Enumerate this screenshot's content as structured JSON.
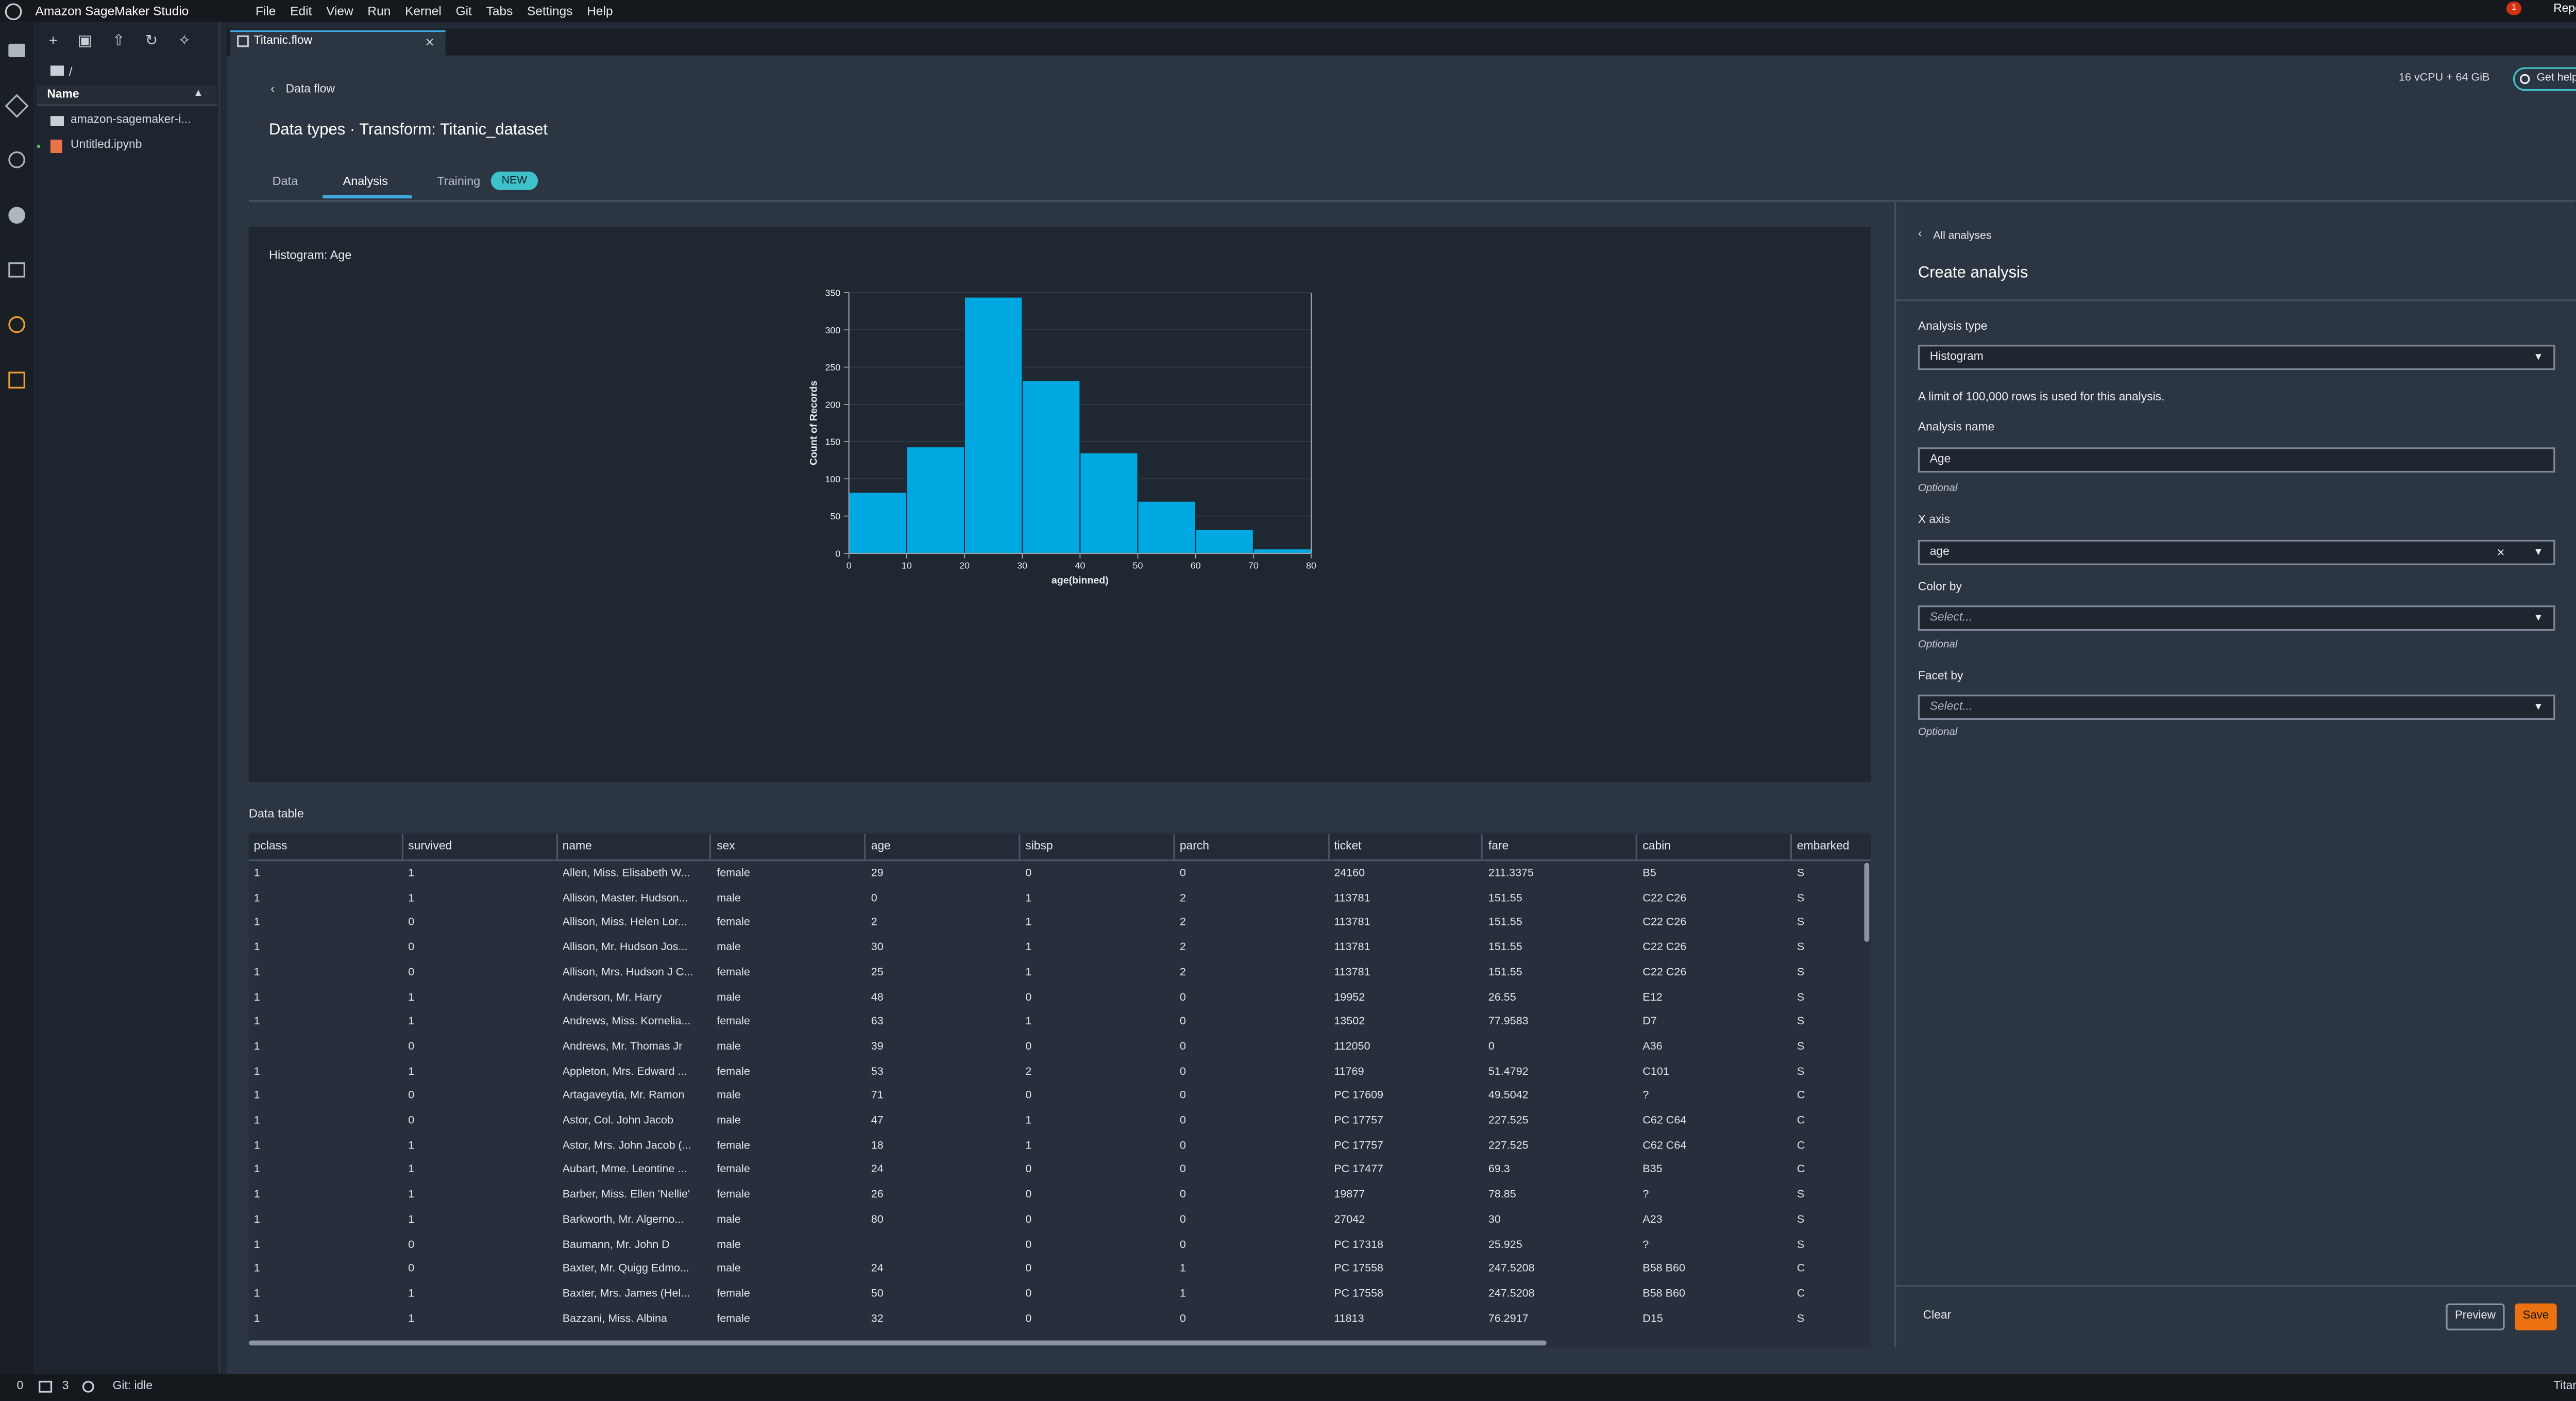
{
  "app": {
    "title": "Amazon SageMaker Studio",
    "menu": [
      "File",
      "Edit",
      "View",
      "Run",
      "Kernel",
      "Git",
      "Tabs",
      "Settings",
      "Help"
    ],
    "notifications": "1",
    "report": "Report a bug"
  },
  "file_browser": {
    "path": "/",
    "column": "Name",
    "items": [
      "amazon-sagemaker-i...",
      "Untitled.ipynb"
    ]
  },
  "tab": "Titanic.flow",
  "header": {
    "resources": "16 vCPU + 64 GiB",
    "help": "Get help",
    "back": "Data flow",
    "title": "Data types · Transform: Titanic_dataset",
    "tabs": [
      "Data",
      "Analysis",
      "Training"
    ],
    "badge": "NEW"
  },
  "chart_data": {
    "type": "histogram",
    "title": "Histogram: Age",
    "x_label": "age(binned)",
    "y_label": "Count of Records",
    "bins": [
      0,
      10,
      20,
      30,
      40,
      50,
      60,
      70,
      80
    ],
    "values": [
      82,
      143,
      344,
      232,
      135,
      70,
      32,
      6
    ],
    "color": "#00a8e1",
    "xlim": [
      0,
      80
    ],
    "xticks": [
      0,
      10,
      20,
      30,
      40,
      50,
      60,
      70,
      80
    ],
    "ylim": [
      0,
      350
    ],
    "yticks": [
      0,
      50,
      100,
      150,
      200,
      250,
      300,
      350
    ],
    "grid": true
  },
  "table": {
    "title": "Data table",
    "columns": [
      "pclass",
      "survived",
      "name",
      "sex",
      "age",
      "sibsp",
      "parch",
      "ticket",
      "fare",
      "cabin",
      "embarked"
    ],
    "rows": [
      [
        "1",
        "1",
        "Allen, Miss. Elisabeth W...",
        "female",
        "29",
        "0",
        "0",
        "24160",
        "211.3375",
        "B5",
        "S"
      ],
      [
        "1",
        "1",
        "Allison, Master. Hudson...",
        "male",
        "0",
        "1",
        "2",
        "113781",
        "151.55",
        "C22 C26",
        "S"
      ],
      [
        "1",
        "0",
        "Allison, Miss. Helen Lor...",
        "female",
        "2",
        "1",
        "2",
        "113781",
        "151.55",
        "C22 C26",
        "S"
      ],
      [
        "1",
        "0",
        "Allison, Mr. Hudson Jos...",
        "male",
        "30",
        "1",
        "2",
        "113781",
        "151.55",
        "C22 C26",
        "S"
      ],
      [
        "1",
        "0",
        "Allison, Mrs. Hudson J C...",
        "female",
        "25",
        "1",
        "2",
        "113781",
        "151.55",
        "C22 C26",
        "S"
      ],
      [
        "1",
        "1",
        "Anderson, Mr. Harry",
        "male",
        "48",
        "0",
        "0",
        "19952",
        "26.55",
        "E12",
        "S"
      ],
      [
        "1",
        "1",
        "Andrews, Miss. Kornelia...",
        "female",
        "63",
        "1",
        "0",
        "13502",
        "77.9583",
        "D7",
        "S"
      ],
      [
        "1",
        "0",
        "Andrews, Mr. Thomas Jr",
        "male",
        "39",
        "0",
        "0",
        "112050",
        "0",
        "A36",
        "S"
      ],
      [
        "1",
        "1",
        "Appleton, Mrs. Edward ...",
        "female",
        "53",
        "2",
        "0",
        "11769",
        "51.4792",
        "C101",
        "S"
      ],
      [
        "1",
        "0",
        "Artagaveytia, Mr. Ramon",
        "male",
        "71",
        "0",
        "0",
        "PC 17609",
        "49.5042",
        "?",
        "C"
      ],
      [
        "1",
        "0",
        "Astor, Col. John Jacob",
        "male",
        "47",
        "1",
        "0",
        "PC 17757",
        "227.525",
        "C62 C64",
        "C"
      ],
      [
        "1",
        "1",
        "Astor, Mrs. John Jacob (...",
        "female",
        "18",
        "1",
        "0",
        "PC 17757",
        "227.525",
        "C62 C64",
        "C"
      ],
      [
        "1",
        "1",
        "Aubart, Mme. Leontine ...",
        "female",
        "24",
        "0",
        "0",
        "PC 17477",
        "69.3",
        "B35",
        "C"
      ],
      [
        "1",
        "1",
        "Barber, Miss. Ellen 'Nellie'",
        "female",
        "26",
        "0",
        "0",
        "19877",
        "78.85",
        "?",
        "S"
      ],
      [
        "1",
        "1",
        "Barkworth, Mr. Algerno...",
        "male",
        "80",
        "0",
        "0",
        "27042",
        "30",
        "A23",
        "S"
      ],
      [
        "1",
        "0",
        "Baumann, Mr. John D",
        "male",
        null,
        "0",
        "0",
        "PC 17318",
        "25.925",
        "?",
        "S"
      ],
      [
        "1",
        "0",
        "Baxter, Mr. Quigg Edmo...",
        "male",
        "24",
        "0",
        "1",
        "PC 17558",
        "247.5208",
        "B58 B60",
        "C"
      ],
      [
        "1",
        "1",
        "Baxter, Mrs. James (Hel...",
        "female",
        "50",
        "0",
        "1",
        "PC 17558",
        "247.5208",
        "B58 B60",
        "C"
      ],
      [
        "1",
        "1",
        "Bazzani, Miss. Albina",
        "female",
        "32",
        "0",
        "0",
        "11813",
        "76.2917",
        "D15",
        "S"
      ]
    ]
  },
  "analysis_panel": {
    "back": "All analyses",
    "title": "Create analysis",
    "type_label": "Analysis type",
    "type_value": "Histogram",
    "limit_note": "A limit of 100,000 rows is used for this analysis.",
    "name_label": "Analysis name",
    "name_value": "Age",
    "name_hint": "Optional",
    "x_label": "X axis",
    "x_value": "age",
    "color_label": "Color by",
    "color_placeholder": "Select...",
    "color_hint": "Optional",
    "facet_label": "Facet by",
    "facet_placeholder": "Select...",
    "facet_hint": "Optional",
    "clear": "Clear",
    "preview": "Preview",
    "save": "Save"
  },
  "status": {
    "kernels": "0",
    "terminals": "3",
    "git": "Git: idle",
    "right": "Titanic.flow"
  }
}
